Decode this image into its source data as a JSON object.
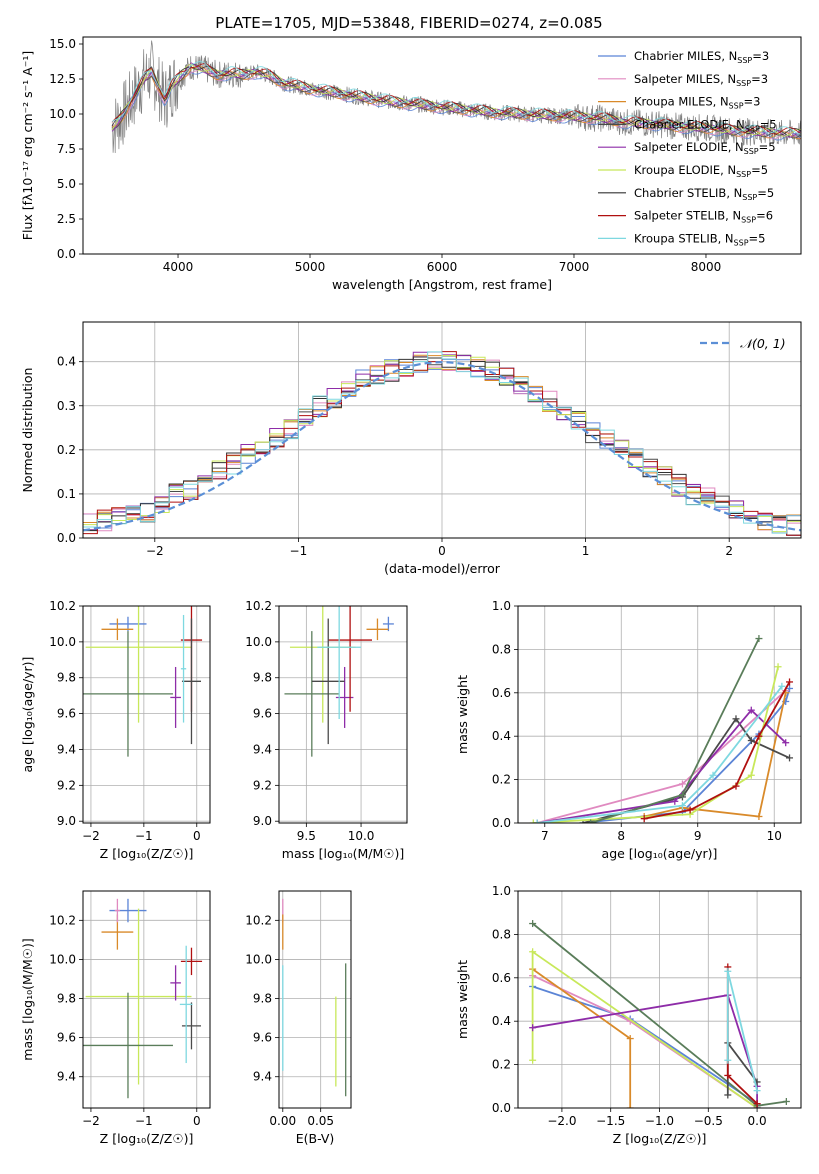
{
  "chart_data": [
    {
      "id": "spectrum",
      "type": "line",
      "title": "PLATE=1705, MJD=53848, FIBERID=0274, z=0.085",
      "xlabel": "wavelength [Angstrom, rest frame]",
      "ylabel": "Flux [fλ10⁻¹⁷ erg cm⁻² s⁻¹ A⁻¹]",
      "xlim": [
        3280,
        8720
      ],
      "ylim": [
        0,
        15.5
      ],
      "xticks": [
        "4000",
        "5000",
        "6000",
        "7000",
        "8000"
      ],
      "xtick_values": [
        4000,
        5000,
        6000,
        7000,
        8000
      ],
      "yticks": [
        "0.0",
        "2.5",
        "5.0",
        "7.5",
        "10.0",
        "12.5",
        "15.0"
      ],
      "ytick_values": [
        0,
        2.5,
        5,
        7.5,
        10,
        12.5,
        15
      ],
      "grid": false,
      "legend_position": "top-right",
      "data_color": "#808080",
      "data": {
        "x": [
          3500,
          3550,
          3600,
          3650,
          3700,
          3750,
          3800,
          3850,
          3900,
          3950,
          4000,
          4100,
          4200,
          4300,
          4400,
          4500,
          4600,
          4700,
          4800,
          4900,
          5000,
          5200,
          5400,
          5600,
          5800,
          6000,
          6200,
          6400,
          6600,
          6800,
          7000,
          7200,
          7400,
          7600,
          7800,
          8000,
          8200,
          8400,
          8600
        ],
        "y": [
          9.0,
          9.5,
          10.2,
          11.0,
          11.8,
          12.6,
          13.0,
          12.0,
          11.0,
          12.0,
          12.5,
          13.4,
          13.2,
          12.8,
          12.9,
          12.8,
          13.0,
          12.7,
          12.2,
          12.0,
          11.8,
          11.5,
          11.2,
          10.9,
          10.7,
          10.5,
          10.3,
          10.1,
          10.0,
          9.9,
          9.8,
          9.7,
          9.4,
          9.3,
          9.1,
          9.0,
          8.8,
          8.7,
          8.6
        ]
      },
      "series": [
        {
          "name": "Chabrier MILES, N_SSP=3",
          "color": "#5b84d6"
        },
        {
          "name": "Salpeter MILES, N_SSP=3",
          "color": "#e08ac0"
        },
        {
          "name": "Kroupa MILES, N_SSP=3",
          "color": "#d98a2a"
        },
        {
          "name": "Chabrier ELODIE, N_SSP=5",
          "color": "#4a4a4a"
        },
        {
          "name": "Salpeter ELODIE, N_SSP=5",
          "color": "#8e2ca8"
        },
        {
          "name": "Kroupa ELODIE, N_SSP=5",
          "color": "#c8e85a"
        },
        {
          "name": "Chabrier STELIB, N_SSP=5",
          "color": "#333333"
        },
        {
          "name": "Salpeter STELIB, N_SSP=6",
          "color": "#b01010"
        },
        {
          "name": "Kroupa STELIB, N_SSP=5",
          "color": "#7ed8e0"
        }
      ],
      "legend_labels": [
        {
          "main": "Chabrier MILES, N",
          "sub": "SSP",
          "tail": "=3"
        },
        {
          "main": "Salpeter MILES, N",
          "sub": "SSP",
          "tail": "=3"
        },
        {
          "main": "Kroupa MILES, N",
          "sub": "SSP",
          "tail": "=3"
        },
        {
          "main": "Chabrier ELODIE, N",
          "sub": "SSP",
          "tail": "=5"
        },
        {
          "main": "Salpeter ELODIE, N",
          "sub": "SSP",
          "tail": "=5"
        },
        {
          "main": "Kroupa ELODIE, N",
          "sub": "SSP",
          "tail": "=5"
        },
        {
          "main": "Chabrier STELIB, N",
          "sub": "SSP",
          "tail": "=5"
        },
        {
          "main": "Salpeter STELIB, N",
          "sub": "SSP",
          "tail": "=6"
        },
        {
          "main": "Kroupa STELIB, N",
          "sub": "SSP",
          "tail": "=5"
        }
      ]
    },
    {
      "id": "residuals",
      "type": "bar",
      "xlabel": "(data-model)/error",
      "ylabel": "Normed distribution",
      "xlim": [
        -2.5,
        2.5
      ],
      "ylim": [
        0,
        0.49
      ],
      "xticks": [
        "−2",
        "−1",
        "0",
        "1",
        "2"
      ],
      "xtick_values": [
        -2,
        -1,
        0,
        1,
        2
      ],
      "yticks": [
        "0.0",
        "0.1",
        "0.2",
        "0.3",
        "0.4"
      ],
      "ytick_values": [
        0,
        0.1,
        0.2,
        0.3,
        0.4
      ],
      "grid": true,
      "legend_position": "top-right",
      "legend_label": "𝒩(0, 1)",
      "gaussian_color": "#5b8fd6",
      "bin_width": 0.1,
      "histogram_centers": [
        -2.45,
        -2.35,
        -2.25,
        -2.15,
        -2.05,
        -1.95,
        -1.85,
        -1.75,
        -1.65,
        -1.55,
        -1.45,
        -1.35,
        -1.25,
        -1.15,
        -1.05,
        -0.95,
        -0.85,
        -0.75,
        -0.65,
        -0.55,
        -0.45,
        -0.35,
        -0.25,
        -0.15,
        -0.05,
        0.05,
        0.15,
        0.25,
        0.35,
        0.45,
        0.55,
        0.65,
        0.75,
        0.85,
        0.95,
        1.05,
        1.15,
        1.25,
        1.35,
        1.45,
        1.55,
        1.65,
        1.75,
        1.85,
        1.95,
        2.05,
        2.15,
        2.25,
        2.35,
        2.45
      ],
      "histogram_values": [
        0.03,
        0.04,
        0.05,
        0.05,
        0.06,
        0.08,
        0.1,
        0.11,
        0.13,
        0.15,
        0.17,
        0.19,
        0.21,
        0.23,
        0.25,
        0.28,
        0.3,
        0.32,
        0.34,
        0.36,
        0.37,
        0.38,
        0.39,
        0.4,
        0.4,
        0.4,
        0.4,
        0.39,
        0.38,
        0.37,
        0.35,
        0.33,
        0.31,
        0.29,
        0.27,
        0.24,
        0.22,
        0.2,
        0.18,
        0.16,
        0.14,
        0.12,
        0.1,
        0.09,
        0.07,
        0.06,
        0.05,
        0.04,
        0.03,
        0.03
      ]
    },
    {
      "id": "age_vs_Z",
      "type": "scatter",
      "xlabel": "Z [log₁₀(Z/Z☉)]",
      "ylabel": "age  [log₁₀(age/yr)]",
      "xlim": [
        -2.15,
        0.25
      ],
      "ylim": [
        8.99,
        10.2
      ],
      "xticks": [
        "−2",
        "−1",
        "0"
      ],
      "xtick_values": [
        -2,
        -1,
        0
      ],
      "yticks": [
        "9.0",
        "9.2",
        "9.4",
        "9.6",
        "9.8",
        "10.0",
        "10.2"
      ],
      "ytick_values": [
        9.0,
        9.2,
        9.4,
        9.6,
        9.8,
        10.0,
        10.2
      ],
      "grid": true,
      "points": [
        {
          "x": -1.3,
          "y": 10.1,
          "xerr": 0.35,
          "yerr": 0.04,
          "color": "#5b84d6"
        },
        {
          "x": -1.5,
          "y": 10.07,
          "xerr": 0.3,
          "yerr": 0.06,
          "color": "#d98a2a"
        },
        {
          "x": -1.1,
          "y": 9.97,
          "xerr": 1.0,
          "yerr": 0.42,
          "color": "#c8e85a"
        },
        {
          "x": -1.3,
          "y": 9.71,
          "xerr": 0.85,
          "yerr": 0.35,
          "color": "#5a7d5a"
        },
        {
          "x": -0.4,
          "y": 9.69,
          "xerr": 0.1,
          "yerr": 0.17,
          "color": "#8e2ca8"
        },
        {
          "x": -0.1,
          "y": 10.01,
          "xerr": 0.2,
          "yerr": 0.4,
          "color": "#b01010"
        },
        {
          "x": -0.1,
          "y": 9.78,
          "xerr": 0.18,
          "yerr": 0.35,
          "color": "#4a4a4a"
        },
        {
          "x": -0.25,
          "y": 9.85,
          "xerr": 0.05,
          "yerr": 0.3,
          "color": "#7ed8e0"
        }
      ]
    },
    {
      "id": "age_vs_mass",
      "type": "scatter",
      "xlabel": "mass [log₁₀(M/M☉)]",
      "ylabel": "",
      "xlim": [
        9.25,
        10.42
      ],
      "ylim": [
        8.99,
        10.2
      ],
      "xticks": [
        "9.5",
        "10.0"
      ],
      "xtick_values": [
        9.5,
        10.0
      ],
      "yticks": [
        "9.0",
        "9.2",
        "9.4",
        "9.6",
        "9.8",
        "10.0",
        "10.2"
      ],
      "ytick_values": [
        9.0,
        9.2,
        9.4,
        9.6,
        9.8,
        10.0,
        10.2
      ],
      "grid": true,
      "points": [
        {
          "x": 10.25,
          "y": 10.1,
          "xerr": 0.05,
          "yerr": 0.04,
          "color": "#5b84d6"
        },
        {
          "x": 10.15,
          "y": 10.07,
          "xerr": 0.1,
          "yerr": 0.06,
          "color": "#d98a2a"
        },
        {
          "x": 9.65,
          "y": 9.97,
          "xerr": 0.3,
          "yerr": 0.42,
          "color": "#c8e85a"
        },
        {
          "x": 9.55,
          "y": 9.71,
          "xerr": 0.25,
          "yerr": 0.35,
          "color": "#5a7d5a"
        },
        {
          "x": 9.85,
          "y": 9.69,
          "xerr": 0.08,
          "yerr": 0.17,
          "color": "#8e2ca8"
        },
        {
          "x": 9.9,
          "y": 10.01,
          "xerr": 0.2,
          "yerr": 0.4,
          "color": "#b01010"
        },
        {
          "x": 9.7,
          "y": 9.78,
          "xerr": 0.15,
          "yerr": 0.35,
          "color": "#4a4a4a"
        },
        {
          "x": 9.8,
          "y": 9.97,
          "xerr": 0.2,
          "yerr": 0.4,
          "color": "#7ed8e0"
        }
      ]
    },
    {
      "id": "weight_vs_age",
      "type": "line",
      "xlabel": "age  [log₁₀(age/yr)]",
      "ylabel": "mass weight",
      "xlim": [
        6.65,
        10.35
      ],
      "ylim": [
        0,
        1.0
      ],
      "xticks": [
        "7",
        "8",
        "9",
        "10"
      ],
      "xtick_values": [
        7,
        8,
        9,
        10
      ],
      "yticks": [
        "0.0",
        "0.2",
        "0.4",
        "0.6",
        "0.8",
        "1.0"
      ],
      "ytick_values": [
        0,
        0.2,
        0.4,
        0.6,
        0.8,
        1.0
      ],
      "grid": true,
      "series": [
        {
          "color": "#5b84d6",
          "x": [
            7.5,
            8.8,
            9.8,
            10.15,
            10.2
          ],
          "y": [
            0.0,
            0.05,
            0.41,
            0.56,
            0.62
          ]
        },
        {
          "color": "#e08ac0",
          "x": [
            6.9,
            8.8,
            10.15
          ],
          "y": [
            0.0,
            0.18,
            0.61
          ]
        },
        {
          "color": "#d98a2a",
          "x": [
            8.3,
            8.8,
            9.8,
            10.15
          ],
          "y": [
            0.03,
            0.07,
            0.03,
            0.6
          ]
        },
        {
          "color": "#4a4a4a",
          "x": [
            7.5,
            8.8,
            9.5,
            9.7,
            10.2
          ],
          "y": [
            0.0,
            0.12,
            0.48,
            0.38,
            0.3
          ]
        },
        {
          "color": "#8e2ca8",
          "x": [
            6.9,
            8.7,
            9.7,
            10.15
          ],
          "y": [
            0.0,
            0.1,
            0.52,
            0.37
          ]
        },
        {
          "color": "#c8e85a",
          "x": [
            6.85,
            8.9,
            9.7,
            10.05
          ],
          "y": [
            0.0,
            0.04,
            0.22,
            0.72
          ]
        },
        {
          "color": "#5a7d5a",
          "x": [
            7.6,
            8.8,
            9.8
          ],
          "y": [
            0.0,
            0.13,
            0.85
          ]
        },
        {
          "color": "#b01010",
          "x": [
            8.3,
            8.9,
            9.5,
            9.8,
            10.2
          ],
          "y": [
            0.02,
            0.06,
            0.17,
            0.4,
            0.65
          ]
        },
        {
          "color": "#7ed8e0",
          "x": [
            6.9,
            8.8,
            9.2,
            10.1
          ],
          "y": [
            0.0,
            0.08,
            0.22,
            0.63
          ]
        }
      ]
    },
    {
      "id": "mass_vs_Z",
      "type": "scatter",
      "xlabel": "Z [log₁₀(Z/Z☉)]",
      "ylabel": "mass [log₁₀(M/M☉)]",
      "xlim": [
        -2.15,
        0.25
      ],
      "ylim": [
        9.24,
        10.35
      ],
      "xticks": [
        "−2",
        "−1",
        "0"
      ],
      "xtick_values": [
        -2,
        -1,
        0
      ],
      "yticks": [
        "9.4",
        "9.6",
        "9.8",
        "10.0",
        "10.2"
      ],
      "ytick_values": [
        9.4,
        9.6,
        9.8,
        10.0,
        10.2
      ],
      "grid": true,
      "points": [
        {
          "x": -1.3,
          "y": 10.25,
          "xerr": 0.35,
          "yerr": 0.06,
          "color": "#5b84d6"
        },
        {
          "x": -1.5,
          "y": 10.14,
          "xerr": 0.3,
          "yerr": 0.09,
          "color": "#d98a2a"
        },
        {
          "x": -1.5,
          "y": 10.25,
          "xerr": 0.05,
          "yerr": 0.06,
          "color": "#e08ac0"
        },
        {
          "x": -1.1,
          "y": 9.81,
          "xerr": 1.0,
          "yerr": 0.45,
          "color": "#c8e85a"
        },
        {
          "x": -1.3,
          "y": 9.56,
          "xerr": 0.85,
          "yerr": 0.27,
          "color": "#5a7d5a"
        },
        {
          "x": -0.4,
          "y": 9.88,
          "xerr": 0.1,
          "yerr": 0.09,
          "color": "#8e2ca8"
        },
        {
          "x": -0.1,
          "y": 9.99,
          "xerr": 0.2,
          "yerr": 0.07,
          "color": "#b01010"
        },
        {
          "x": -0.1,
          "y": 9.66,
          "xerr": 0.18,
          "yerr": 0.12,
          "color": "#4a4a4a"
        },
        {
          "x": -0.2,
          "y": 9.77,
          "xerr": 0.12,
          "yerr": 0.3,
          "color": "#7ed8e0"
        }
      ]
    },
    {
      "id": "mass_vs_ebv",
      "type": "scatter",
      "xlabel": "E(B-V)",
      "ylabel": "",
      "xlim": [
        -0.005,
        0.09
      ],
      "ylim": [
        9.24,
        10.35
      ],
      "xticks": [
        "0.00",
        "0.05"
      ],
      "xtick_values": [
        0,
        0.05
      ],
      "yticks": [
        "9.4",
        "9.6",
        "9.8",
        "10.0",
        "10.2"
      ],
      "ytick_values": [
        9.4,
        9.6,
        9.8,
        10.0,
        10.2
      ],
      "grid": true,
      "points": [
        {
          "x": 0.0,
          "y": 10.25,
          "xerr": 0,
          "yerr": 0.06,
          "color": "#e08ac0"
        },
        {
          "x": 0.0,
          "y": 10.14,
          "xerr": 0,
          "yerr": 0.09,
          "color": "#d98a2a"
        },
        {
          "x": 0.0,
          "y": 9.7,
          "xerr": 0,
          "yerr": 0.27,
          "color": "#7ed8e0"
        },
        {
          "x": 0.07,
          "y": 9.58,
          "xerr": 0,
          "yerr": 0.23,
          "color": "#c8e85a"
        },
        {
          "x": 0.083,
          "y": 9.64,
          "xerr": 0,
          "yerr": 0.34,
          "color": "#5a7d5a"
        }
      ]
    },
    {
      "id": "weight_vs_Z",
      "type": "line",
      "xlabel": "Z [log₁₀(Z/Z☉)]",
      "ylabel": "mass weight",
      "xlim": [
        -2.45,
        0.45
      ],
      "ylim": [
        0,
        1.0
      ],
      "xticks": [
        "−2.0",
        "−1.5",
        "−1.0",
        "−0.5",
        "0.0"
      ],
      "xtick_values": [
        -2.0,
        -1.5,
        -1.0,
        -0.5,
        0.0
      ],
      "yticks": [
        "0.0",
        "0.2",
        "0.4",
        "0.6",
        "0.8",
        "1.0"
      ],
      "ytick_values": [
        0,
        0.2,
        0.4,
        0.6,
        0.8,
        1.0
      ],
      "grid": true,
      "series": [
        {
          "color": "#5b84d6",
          "x": [
            -2.3,
            -1.3,
            0.0,
            0.0
          ],
          "y": [
            0.56,
            0.41,
            0.02,
            0.0
          ]
        },
        {
          "color": "#e08ac0",
          "x": [
            -2.3,
            -1.3,
            0.0
          ],
          "y": [
            0.61,
            0.4,
            0.0
          ]
        },
        {
          "color": "#d98a2a",
          "x": [
            -2.3,
            -1.3,
            -1.3
          ],
          "y": [
            0.64,
            0.32,
            0.0
          ]
        },
        {
          "color": "#c8e85a",
          "x": [
            -2.3,
            -2.3,
            0.0
          ],
          "y": [
            0.22,
            0.72,
            0.0
          ]
        },
        {
          "color": "#8e2ca8",
          "x": [
            -2.3,
            -0.3,
            0.0,
            0.0
          ],
          "y": [
            0.37,
            0.52,
            0.1,
            0.0
          ]
        },
        {
          "color": "#5a7d5a",
          "x": [
            -2.3,
            0.0,
            0.3
          ],
          "y": [
            0.85,
            0.01,
            0.03
          ]
        },
        {
          "color": "#4a4a4a",
          "x": [
            -0.3,
            -0.3,
            0.0
          ],
          "y": [
            0.06,
            0.3,
            0.12
          ]
        },
        {
          "color": "#b01010",
          "x": [
            -0.3,
            -0.3,
            0.0
          ],
          "y": [
            0.65,
            0.15,
            0.02
          ]
        },
        {
          "color": "#7ed8e0",
          "x": [
            -0.3,
            -0.3,
            0.0
          ],
          "y": [
            0.22,
            0.63,
            0.08
          ]
        }
      ]
    }
  ]
}
